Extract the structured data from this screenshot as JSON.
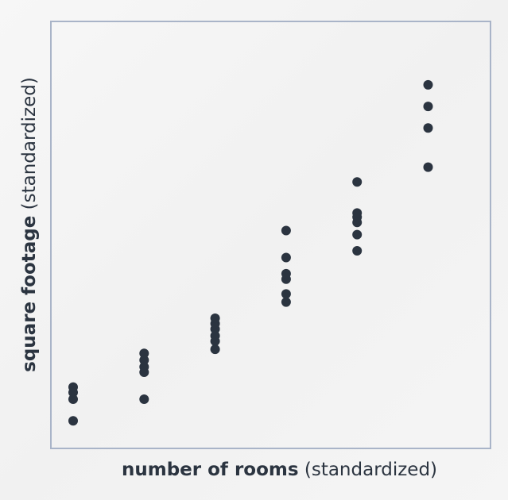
{
  "chart_data": {
    "type": "scatter",
    "title": "",
    "xlabel": {
      "bold": "number of rooms",
      "normal": " (standardized)"
    },
    "ylabel": {
      "bold": "square footage",
      "normal": " (standardized)"
    },
    "xlim": [
      0,
      6.25
    ],
    "ylim": [
      0,
      30
    ],
    "grid": false,
    "point_color": "#2b3440",
    "frame_color": "#a9b4c8",
    "series": [
      {
        "x": [
          0,
          0,
          0,
          0,
          1,
          1,
          1,
          1,
          1,
          2,
          2,
          2,
          2,
          2,
          2,
          3,
          3,
          3,
          3,
          3,
          3,
          4,
          4,
          4,
          4,
          4,
          4,
          5,
          5,
          5,
          5
        ],
        "y": [
          2.4,
          4.0,
          4.5,
          4.9,
          4.0,
          6.0,
          6.4,
          6.9,
          7.4,
          7.7,
          8.3,
          8.7,
          9.2,
          9.6,
          10.0,
          11.2,
          11.8,
          12.9,
          13.3,
          14.5,
          16.5,
          15.0,
          16.2,
          17.1,
          17.5,
          17.8,
          20.1,
          21.2,
          24.1,
          25.7,
          27.3
        ]
      }
    ]
  }
}
